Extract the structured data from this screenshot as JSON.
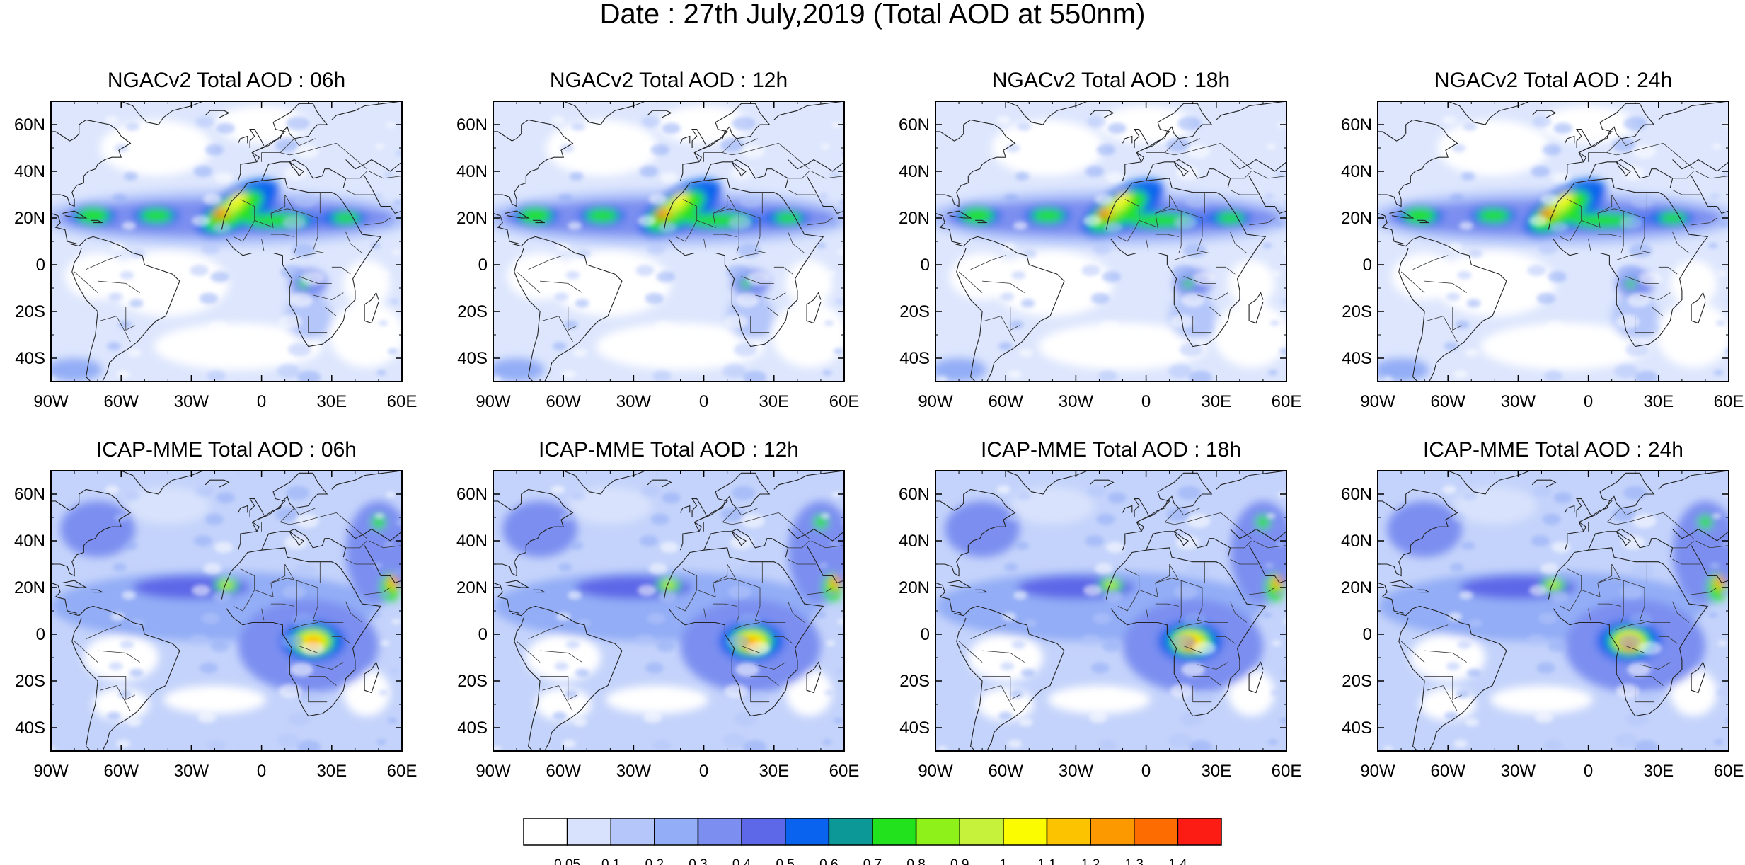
{
  "title": "Date : 27th July,2019 (Total AOD at 550nm)",
  "panels": [
    {
      "title": "NGACv2 Total AOD : 06h",
      "model": "ngac",
      "hour": "06h"
    },
    {
      "title": "NGACv2 Total AOD : 12h",
      "model": "ngac",
      "hour": "12h"
    },
    {
      "title": "NGACv2 Total AOD : 18h",
      "model": "ngac",
      "hour": "18h"
    },
    {
      "title": "NGACv2 Total AOD : 24h",
      "model": "ngac",
      "hour": "24h"
    },
    {
      "title": "ICAP-MME Total AOD : 06h",
      "model": "icap",
      "hour": "06h"
    },
    {
      "title": "ICAP-MME Total AOD : 12h",
      "model": "icap",
      "hour": "12h"
    },
    {
      "title": "ICAP-MME Total AOD : 18h",
      "model": "icap",
      "hour": "18h"
    },
    {
      "title": "ICAP-MME Total AOD : 24h",
      "model": "icap",
      "hour": "24h"
    }
  ],
  "axes": {
    "lon_range": [
      -90,
      60
    ],
    "lat_range": [
      -50,
      70
    ],
    "lon_ticks": [
      -90,
      -60,
      -30,
      0,
      30,
      60
    ],
    "lon_tick_labels": [
      "90W",
      "60W",
      "30W",
      "0",
      "30E",
      "60E"
    ],
    "lat_ticks": [
      60,
      40,
      20,
      0,
      -20,
      -40
    ],
    "lat_tick_labels": [
      "60N",
      "40N",
      "20N",
      "0",
      "20S",
      "40S"
    ]
  },
  "colorbar": {
    "labels": [
      "0.05",
      "0.1",
      "0.2",
      "0.3",
      "0.4",
      "0.5",
      "0.6",
      "0.7",
      "0.8",
      "0.9",
      "1",
      "1.1",
      "1.2",
      "1.3",
      "1.4"
    ],
    "colors": [
      "#ffffff",
      "#d8e2fc",
      "#b4c6fa",
      "#93adf6",
      "#7c8ff0",
      "#5d68e8",
      "#0a63ee",
      "#0d9898",
      "#22e21e",
      "#8ef21a",
      "#c6f23c",
      "#fcfc00",
      "#fcc400",
      "#fc9800",
      "#fc6c00",
      "#fc1c14"
    ]
  }
}
